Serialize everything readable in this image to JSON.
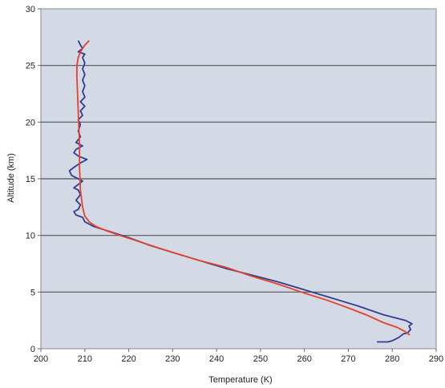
{
  "chart_data": {
    "type": "line",
    "title": "",
    "xlabel": "Temperature (K)",
    "ylabel": "Altitude (km)",
    "xlim": [
      200,
      290
    ],
    "ylim": [
      0,
      30
    ],
    "xticks": [
      200,
      210,
      220,
      230,
      240,
      250,
      260,
      270,
      280,
      290
    ],
    "yticks": [
      0,
      5,
      10,
      15,
      20,
      25,
      30
    ],
    "grid": "horizontal",
    "legend": "none",
    "colors": {
      "plot_bg": "#d4d9e6",
      "grid": "#555555",
      "measured": "#2f3e8f",
      "model": "#e8402a"
    },
    "series": [
      {
        "key": "measured",
        "points": [
          [
            276.5,
            0.6
          ],
          [
            279.0,
            0.6
          ],
          [
            280.0,
            0.7
          ],
          [
            281.5,
            1.0
          ],
          [
            282.5,
            1.3
          ],
          [
            283.5,
            1.4
          ],
          [
            284.2,
            1.7
          ],
          [
            283.8,
            2.0
          ],
          [
            284.5,
            2.2
          ],
          [
            283.0,
            2.5
          ],
          [
            278.0,
            3.0
          ],
          [
            272.0,
            3.8
          ],
          [
            266.0,
            4.5
          ],
          [
            260.0,
            5.2
          ],
          [
            254.0,
            5.9
          ],
          [
            248.0,
            6.5
          ],
          [
            242.0,
            7.1
          ],
          [
            236.0,
            7.8
          ],
          [
            230.0,
            8.5
          ],
          [
            225.0,
            9.1
          ],
          [
            220.0,
            9.8
          ],
          [
            216.0,
            10.3
          ],
          [
            212.0,
            10.8
          ],
          [
            210.0,
            11.2
          ],
          [
            209.5,
            11.6
          ],
          [
            208.0,
            11.8
          ],
          [
            207.5,
            12.1
          ],
          [
            208.5,
            12.3
          ],
          [
            209.0,
            12.7
          ],
          [
            208.0,
            13.1
          ],
          [
            209.0,
            13.6
          ],
          [
            208.5,
            14.0
          ],
          [
            207.5,
            14.2
          ],
          [
            208.5,
            14.5
          ],
          [
            209.5,
            14.8
          ],
          [
            207.0,
            15.3
          ],
          [
            206.5,
            15.7
          ],
          [
            207.5,
            16.0
          ],
          [
            209.0,
            16.4
          ],
          [
            210.5,
            16.7
          ],
          [
            208.5,
            17.0
          ],
          [
            207.5,
            17.3
          ],
          [
            208.0,
            17.6
          ],
          [
            209.5,
            17.9
          ],
          [
            208.0,
            18.2
          ],
          [
            209.0,
            18.7
          ],
          [
            208.5,
            19.2
          ],
          [
            209.0,
            19.8
          ],
          [
            208.5,
            20.2
          ],
          [
            209.5,
            20.6
          ],
          [
            209.0,
            21.0
          ],
          [
            210.0,
            21.4
          ],
          [
            209.0,
            21.8
          ],
          [
            210.0,
            22.2
          ],
          [
            209.5,
            22.7
          ],
          [
            210.0,
            23.2
          ],
          [
            209.5,
            23.7
          ],
          [
            210.0,
            24.2
          ],
          [
            209.5,
            24.7
          ],
          [
            210.0,
            25.2
          ],
          [
            209.5,
            25.7
          ],
          [
            210.0,
            26.0
          ],
          [
            208.5,
            26.2
          ],
          [
            209.5,
            26.5
          ],
          [
            209.0,
            26.8
          ],
          [
            208.5,
            27.2
          ]
        ]
      },
      {
        "key": "model",
        "points": [
          [
            284.0,
            1.2
          ],
          [
            283.0,
            1.5
          ],
          [
            281.0,
            1.9
          ],
          [
            278.0,
            2.3
          ],
          [
            274.0,
            3.0
          ],
          [
            270.0,
            3.6
          ],
          [
            265.0,
            4.3
          ],
          [
            260.0,
            4.9
          ],
          [
            254.0,
            5.7
          ],
          [
            248.0,
            6.4
          ],
          [
            242.0,
            7.2
          ],
          [
            236.0,
            7.8
          ],
          [
            230.0,
            8.5
          ],
          [
            226.0,
            9.0
          ],
          [
            222.0,
            9.5
          ],
          [
            218.0,
            10.0
          ],
          [
            215.0,
            10.4
          ],
          [
            212.5,
            10.8
          ],
          [
            211.0,
            11.2
          ],
          [
            210.0,
            11.7
          ],
          [
            209.5,
            12.5
          ],
          [
            209.0,
            14.0
          ],
          [
            208.8,
            16.0
          ],
          [
            208.8,
            18.0
          ],
          [
            208.6,
            20.0
          ],
          [
            208.4,
            22.0
          ],
          [
            208.2,
            24.0
          ],
          [
            208.2,
            25.0
          ],
          [
            208.5,
            25.7
          ],
          [
            209.0,
            26.2
          ],
          [
            210.0,
            26.8
          ],
          [
            211.0,
            27.2
          ]
        ]
      }
    ]
  }
}
